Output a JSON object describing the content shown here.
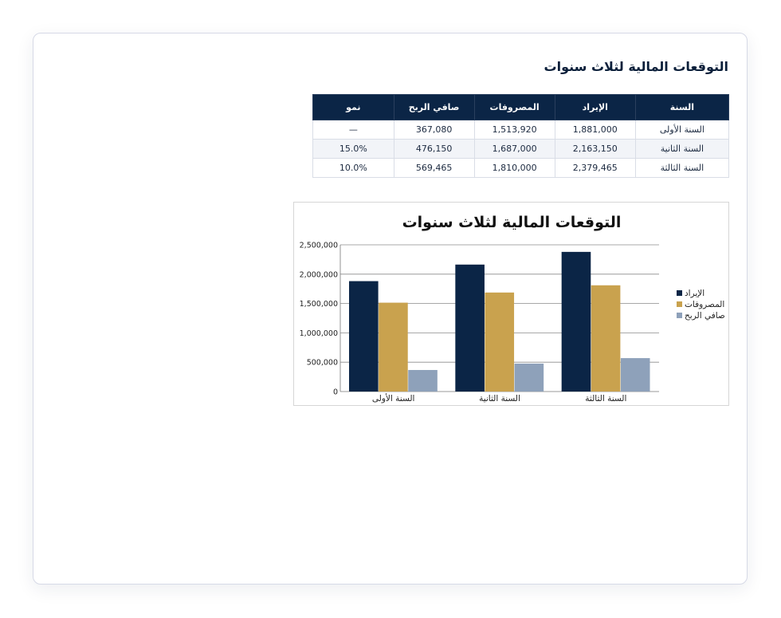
{
  "page": {
    "title": "التوقعات المالية لثلاث سنوات"
  },
  "table": {
    "headers": [
      "السنة",
      "الإيراد",
      "المصروفات",
      "صافي الربح",
      "نمو"
    ],
    "rows": [
      [
        "السنة الأولى",
        "1,881,000",
        "1,513,920",
        "367,080",
        "—"
      ],
      [
        "السنة الثانية",
        "2,163,150",
        "1,687,000",
        "476,150",
        "15.0%"
      ],
      [
        "السنة الثالثة",
        "2,379,465",
        "1,810,000",
        "569,465",
        "10.0%"
      ]
    ]
  },
  "chart_data": {
    "type": "bar",
    "title": "التوقعات المالية لثلاث سنوات",
    "categories": [
      "السنة الأولى",
      "السنة الثانية",
      "السنة الثالثة"
    ],
    "series": [
      {
        "name": "الإيراد",
        "values": [
          1881000,
          2163150,
          2379465
        ],
        "color": "#0b2546"
      },
      {
        "name": "المصروفات",
        "values": [
          1513920,
          1687000,
          1810000
        ],
        "color": "#c9a24e"
      },
      {
        "name": "صافي الربح",
        "values": [
          367080,
          476150,
          569465
        ],
        "color": "#8ea1ba"
      }
    ],
    "yticks": [
      "0",
      "500,000",
      "1,000,000",
      "1,500,000",
      "2,000,000",
      "2,500,000"
    ],
    "ylim": [
      0,
      2500000
    ],
    "grid": true,
    "legend": "right"
  }
}
